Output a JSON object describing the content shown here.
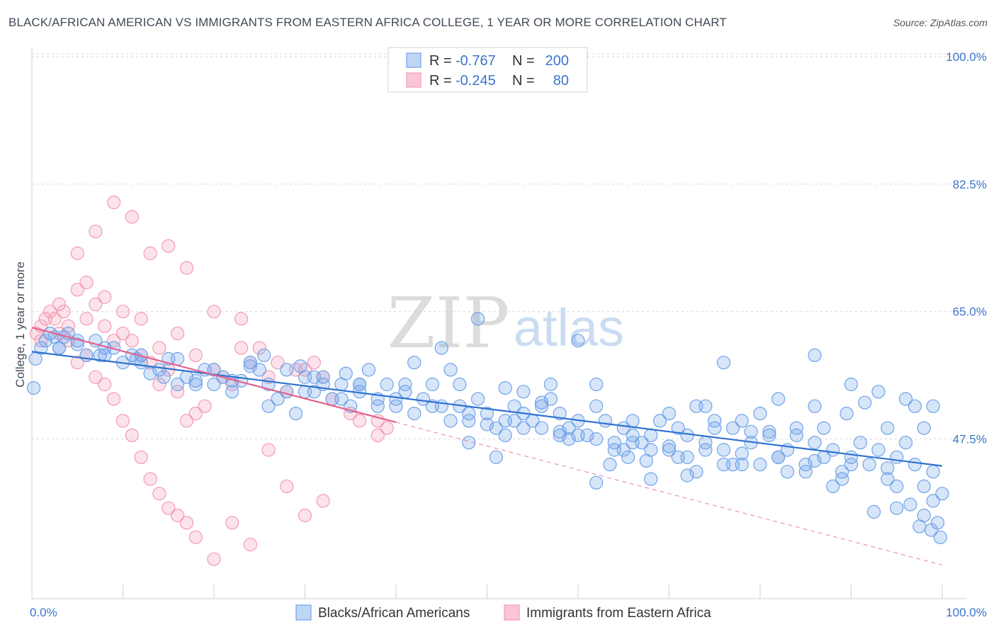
{
  "title": "BLACK/AFRICAN AMERICAN VS IMMIGRANTS FROM EASTERN AFRICA COLLEGE, 1 YEAR OR MORE CORRELATION CHART",
  "source": "Source: ZipAtlas.com",
  "watermark": {
    "zip": "ZIP",
    "atlas": "atlas"
  },
  "legend": {
    "row1": {
      "r_label": "R =",
      "r_value": "-0.767",
      "n_label": "N =",
      "n_value": "200"
    },
    "row2": {
      "r_label": "R =",
      "r_value": "-0.245",
      "n_label": "N =",
      "n_value": "80"
    }
  },
  "chart_data": {
    "type": "scatter",
    "ylabel": "College, 1 year or more",
    "xlim": [
      0,
      100
    ],
    "ylim": [
      28,
      100
    ],
    "y_ticks": [
      {
        "value": 100,
        "label": "100.0%"
      },
      {
        "value": 82.5,
        "label": "82.5%"
      },
      {
        "value": 65,
        "label": "65.0%"
      },
      {
        "value": 47.5,
        "label": "47.5%"
      }
    ],
    "x_tick_labels": {
      "min": "0.0%",
      "max": "100.0%"
    },
    "grid": "horizontal dashed",
    "colors": {
      "blue": "#6fa3e8",
      "blue_line": "#2f72d1",
      "pink": "#f39ab4",
      "pink_line": "#e2628e"
    },
    "series": [
      {
        "name": "Blacks/African Americans",
        "color": "#6fa3e8",
        "trend": {
          "x1": 0,
          "y1": 59.5,
          "x2": 100,
          "y2": 43.8
        },
        "points": [
          [
            0.2,
            54.5
          ],
          [
            0.4,
            58.5
          ],
          [
            1.5,
            61
          ],
          [
            2,
            62
          ],
          [
            2.5,
            61.5
          ],
          [
            3,
            60
          ],
          [
            3.5,
            61.5
          ],
          [
            4,
            62
          ],
          [
            5,
            61
          ],
          [
            6,
            59
          ],
          [
            7,
            61
          ],
          [
            8,
            59
          ],
          [
            9,
            60
          ],
          [
            10,
            58
          ],
          [
            11,
            59
          ],
          [
            12,
            58
          ],
          [
            13,
            56.5
          ],
          [
            14,
            57
          ],
          [
            15,
            58.5
          ],
          [
            16,
            55
          ],
          [
            17,
            56
          ],
          [
            18,
            55
          ],
          [
            19,
            57
          ],
          [
            20,
            55
          ],
          [
            21,
            56
          ],
          [
            22,
            54
          ],
          [
            23,
            55.5
          ],
          [
            24,
            58
          ],
          [
            25,
            57
          ],
          [
            26,
            52
          ],
          [
            27,
            53
          ],
          [
            28,
            54
          ],
          [
            29,
            51
          ],
          [
            30,
            56
          ],
          [
            31,
            54
          ],
          [
            32,
            55
          ],
          [
            33,
            53
          ],
          [
            34,
            55
          ],
          [
            35,
            52
          ],
          [
            36,
            54
          ],
          [
            37,
            57
          ],
          [
            38,
            53
          ],
          [
            39,
            55
          ],
          [
            40,
            52
          ],
          [
            41,
            55
          ],
          [
            42,
            58
          ],
          [
            43,
            53
          ],
          [
            44,
            55
          ],
          [
            45,
            52
          ],
          [
            46,
            57
          ],
          [
            47,
            55
          ],
          [
            48,
            50
          ],
          [
            49,
            53
          ],
          [
            50,
            51
          ],
          [
            51,
            49
          ],
          [
            52,
            48
          ],
          [
            53,
            52
          ],
          [
            54,
            54
          ],
          [
            55,
            50
          ],
          [
            56,
            52
          ],
          [
            57,
            53
          ],
          [
            58,
            51
          ],
          [
            59,
            49
          ],
          [
            60,
            50
          ],
          [
            61,
            48
          ],
          [
            62,
            52
          ],
          [
            63,
            50
          ],
          [
            64,
            46
          ],
          [
            65,
            49
          ],
          [
            66,
            50
          ],
          [
            67,
            47
          ],
          [
            68,
            48
          ],
          [
            69,
            50
          ],
          [
            70,
            51
          ],
          [
            71,
            49
          ],
          [
            72,
            48
          ],
          [
            73,
            52
          ],
          [
            74,
            47
          ],
          [
            75,
            50
          ],
          [
            76,
            46
          ],
          [
            77,
            49
          ],
          [
            78,
            44
          ],
          [
            79,
            47
          ],
          [
            80,
            51
          ],
          [
            81,
            48
          ],
          [
            82,
            45
          ],
          [
            83,
            46
          ],
          [
            84,
            48
          ],
          [
            85,
            44
          ],
          [
            86,
            47
          ],
          [
            87,
            45
          ],
          [
            88,
            46
          ],
          [
            89,
            43
          ],
          [
            90,
            45
          ],
          [
            91,
            47
          ],
          [
            92,
            44
          ],
          [
            93,
            46
          ],
          [
            94,
            42
          ],
          [
            95,
            45
          ],
          [
            96,
            47
          ],
          [
            97,
            44
          ],
          [
            98,
            41
          ],
          [
            99,
            39
          ],
          [
            99.5,
            36
          ],
          [
            99.8,
            34
          ],
          [
            49,
            64
          ],
          [
            45,
            60
          ],
          [
            60,
            61
          ],
          [
            57,
            55
          ],
          [
            76,
            58
          ],
          [
            86,
            59
          ],
          [
            93,
            54
          ],
          [
            99,
            52
          ],
          [
            48,
            47
          ],
          [
            51,
            45
          ],
          [
            54,
            51
          ],
          [
            58,
            48
          ],
          [
            62,
            55
          ],
          [
            66,
            48
          ],
          [
            70,
            46
          ],
          [
            74,
            52
          ],
          [
            78,
            50
          ],
          [
            82,
            53
          ],
          [
            86,
            52
          ],
          [
            90,
            55
          ],
          [
            94,
            49
          ],
          [
            96,
            53
          ],
          [
            97,
            52
          ],
          [
            98,
            49
          ],
          [
            99,
            43
          ],
          [
            100,
            40
          ],
          [
            96.5,
            38.5
          ],
          [
            95,
            38
          ],
          [
            97.5,
            35.5
          ],
          [
            98.8,
            35
          ],
          [
            92.5,
            37.5
          ],
          [
            88,
            41
          ],
          [
            85,
            43
          ],
          [
            80,
            44
          ],
          [
            76,
            44
          ],
          [
            72,
            45
          ],
          [
            68,
            46
          ],
          [
            64,
            47
          ],
          [
            60,
            48
          ],
          [
            56,
            49
          ],
          [
            52,
            50
          ],
          [
            48,
            51
          ],
          [
            44,
            52
          ],
          [
            40,
            53
          ],
          [
            36,
            55
          ],
          [
            32,
            56
          ],
          [
            28,
            57
          ],
          [
            24,
            57.5
          ],
          [
            20,
            57
          ],
          [
            16,
            58.5
          ],
          [
            12,
            59
          ],
          [
            8,
            60
          ],
          [
            5,
            60.5
          ],
          [
            3,
            60
          ],
          [
            1,
            60
          ],
          [
            7.5,
            59
          ],
          [
            11.5,
            58.5
          ],
          [
            14.5,
            56
          ],
          [
            18,
            55.5
          ],
          [
            22,
            55.5
          ],
          [
            26,
            55
          ],
          [
            30,
            54
          ],
          [
            34,
            53
          ],
          [
            38,
            52
          ],
          [
            42,
            51
          ],
          [
            46,
            50
          ],
          [
            50,
            49.5
          ],
          [
            54,
            49
          ],
          [
            58,
            48.5
          ],
          [
            62,
            47.5
          ],
          [
            66,
            47
          ],
          [
            70,
            46.5
          ],
          [
            74,
            46
          ],
          [
            78,
            45.5
          ],
          [
            82,
            45
          ],
          [
            86,
            44.5
          ],
          [
            90,
            44
          ],
          [
            94,
            43.5
          ],
          [
            62,
            41.5
          ],
          [
            68,
            42
          ],
          [
            72,
            42.5
          ],
          [
            56,
            52.5
          ],
          [
            52,
            54.5
          ],
          [
            34.5,
            56.5
          ],
          [
            29.5,
            57.5
          ],
          [
            25.5,
            59
          ],
          [
            31,
            56
          ],
          [
            36,
            55
          ],
          [
            41,
            54
          ],
          [
            47,
            52
          ],
          [
            53,
            50
          ],
          [
            59,
            47.5
          ],
          [
            65,
            46
          ],
          [
            71,
            45
          ],
          [
            77,
            44
          ],
          [
            83,
            43
          ],
          [
            89,
            42
          ],
          [
            95,
            41
          ],
          [
            89.5,
            51
          ],
          [
            91.5,
            52.5
          ],
          [
            84,
            49
          ],
          [
            87,
            49
          ],
          [
            81,
            48.5
          ],
          [
            79,
            48.5
          ],
          [
            75,
            49
          ],
          [
            67.5,
            44.5
          ],
          [
            63.5,
            44
          ],
          [
            65.5,
            45
          ],
          [
            73,
            43
          ],
          [
            98,
            37
          ]
        ]
      },
      {
        "name": "Immigrants from Eastern Africa",
        "color": "#f39ab4",
        "trend": {
          "x1": 0,
          "y1": 62.8,
          "x2": 40,
          "y2": 49.8
        },
        "trend_extension": {
          "x1": 40,
          "y1": 49.8,
          "x2": 100,
          "y2": 30.2
        },
        "points": [
          [
            0.5,
            62
          ],
          [
            1,
            63
          ],
          [
            1.5,
            64
          ],
          [
            2,
            65
          ],
          [
            2.5,
            64
          ],
          [
            3,
            66
          ],
          [
            3.5,
            65
          ],
          [
            4,
            63
          ],
          [
            5,
            68
          ],
          [
            6,
            69
          ],
          [
            7,
            66
          ],
          [
            8,
            67
          ],
          [
            9,
            61
          ],
          [
            10,
            62
          ],
          [
            11,
            61
          ],
          [
            12,
            59
          ],
          [
            13,
            58
          ],
          [
            14,
            55
          ],
          [
            15,
            57
          ],
          [
            16,
            54
          ],
          [
            17,
            50
          ],
          [
            18,
            51
          ],
          [
            19,
            52
          ],
          [
            20,
            57
          ],
          [
            22,
            55
          ],
          [
            24,
            58
          ],
          [
            26,
            56
          ],
          [
            28,
            54
          ],
          [
            30,
            57
          ],
          [
            32,
            56
          ],
          [
            35,
            51
          ],
          [
            38,
            50
          ],
          [
            5,
            58
          ],
          [
            6,
            59
          ],
          [
            7,
            56
          ],
          [
            8,
            55
          ],
          [
            9,
            53
          ],
          [
            10,
            50
          ],
          [
            11,
            48
          ],
          [
            12,
            45
          ],
          [
            13,
            42
          ],
          [
            14,
            40
          ],
          [
            15,
            38
          ],
          [
            16,
            37
          ],
          [
            17,
            36
          ],
          [
            18,
            34
          ],
          [
            20,
            31
          ],
          [
            22,
            36
          ],
          [
            24,
            33
          ],
          [
            26,
            46
          ],
          [
            28,
            41
          ],
          [
            30,
            37
          ],
          [
            32,
            39
          ],
          [
            5,
            73
          ],
          [
            7,
            76
          ],
          [
            9,
            80
          ],
          [
            11,
            78
          ],
          [
            13,
            73
          ],
          [
            15,
            74
          ],
          [
            17,
            71
          ],
          [
            20,
            65
          ],
          [
            23,
            64
          ],
          [
            25,
            60
          ],
          [
            27,
            58
          ],
          [
            29,
            57
          ],
          [
            31,
            58
          ],
          [
            8,
            63
          ],
          [
            10,
            65
          ],
          [
            12,
            64
          ],
          [
            14,
            60
          ],
          [
            16,
            62
          ],
          [
            18,
            59
          ],
          [
            21,
            56
          ],
          [
            23,
            60
          ],
          [
            33,
            53
          ],
          [
            36,
            50
          ],
          [
            38,
            48
          ],
          [
            39,
            49
          ],
          [
            1,
            61
          ],
          [
            3,
            62
          ],
          [
            4,
            61
          ],
          [
            6,
            64
          ]
        ]
      }
    ]
  },
  "bottom_legend": [
    {
      "label": "Blacks/African Americans"
    },
    {
      "label": "Immigrants from Eastern Africa"
    }
  ]
}
